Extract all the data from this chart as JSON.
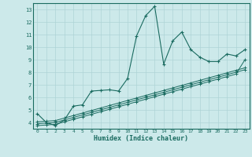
{
  "title": "",
  "xlabel": "Humidex (Indice chaleur)",
  "xlim": [
    -0.5,
    23.5
  ],
  "ylim": [
    3.5,
    13.5
  ],
  "xticks": [
    0,
    1,
    2,
    3,
    4,
    5,
    6,
    7,
    8,
    9,
    10,
    11,
    12,
    13,
    14,
    15,
    16,
    17,
    18,
    19,
    20,
    21,
    22,
    23
  ],
  "yticks": [
    4,
    5,
    6,
    7,
    8,
    9,
    10,
    11,
    12,
    13
  ],
  "bg_color": "#cce9ea",
  "line_color": "#1a6b60",
  "grid_color": "#aed4d6",
  "line1_y": [
    4.7,
    4.0,
    3.75,
    4.2,
    5.3,
    5.4,
    6.5,
    6.55,
    6.6,
    6.5,
    7.5,
    10.9,
    12.5,
    13.25,
    8.65,
    10.5,
    11.2,
    9.8,
    9.2,
    8.85,
    8.85,
    9.45,
    9.3,
    9.8
  ],
  "line2_y": [
    4.05,
    4.1,
    4.15,
    4.35,
    4.55,
    4.75,
    4.95,
    5.15,
    5.35,
    5.55,
    5.75,
    5.95,
    6.15,
    6.35,
    6.55,
    6.75,
    6.95,
    7.15,
    7.35,
    7.55,
    7.75,
    7.95,
    8.15,
    8.35
  ],
  "line3_y": [
    3.9,
    3.95,
    4.0,
    4.2,
    4.4,
    4.6,
    4.8,
    5.0,
    5.2,
    5.4,
    5.6,
    5.8,
    6.0,
    6.2,
    6.4,
    6.6,
    6.8,
    7.0,
    7.2,
    7.4,
    7.6,
    7.8,
    8.0,
    8.2
  ],
  "line4_y": [
    3.75,
    3.8,
    3.85,
    4.05,
    4.25,
    4.45,
    4.65,
    4.85,
    5.05,
    5.25,
    5.45,
    5.65,
    5.85,
    6.05,
    6.25,
    6.45,
    6.65,
    6.85,
    7.05,
    7.25,
    7.45,
    7.65,
    7.85,
    9.0
  ]
}
